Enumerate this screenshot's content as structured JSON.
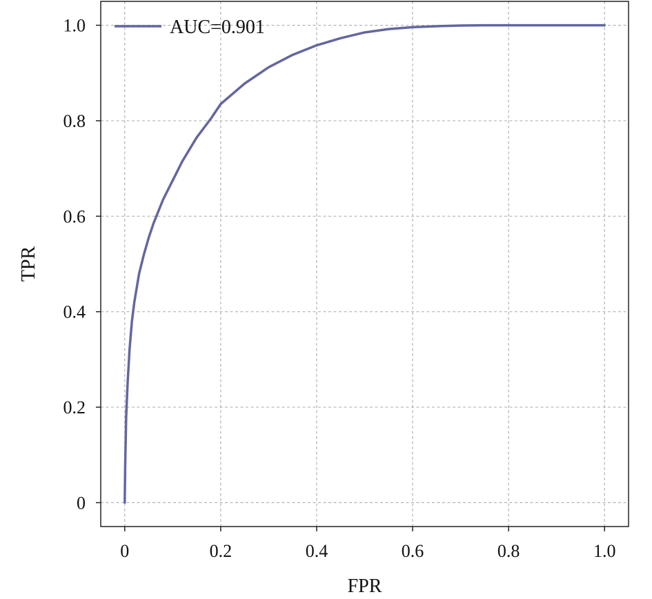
{
  "chart_data": {
    "type": "line",
    "title": "",
    "xlabel": "FPR",
    "ylabel": "TPR",
    "xlim": [
      -0.05,
      1.05
    ],
    "ylim": [
      -0.05,
      1.05
    ],
    "x_ticks": [
      0,
      0.2,
      0.4,
      0.6,
      0.8,
      1.0
    ],
    "x_tick_labels": [
      "0",
      "0.2",
      "0.4",
      "0.6",
      "0.8",
      "1.0"
    ],
    "y_ticks": [
      0,
      0.2,
      0.4,
      0.6,
      0.8,
      1.0
    ],
    "y_tick_labels": [
      "0",
      "0.2",
      "0.4",
      "0.6",
      "0.8",
      "1.0"
    ],
    "grid": true,
    "legend_position": "top-left",
    "series": [
      {
        "name": "AUC=0.901",
        "color": "#6366a0",
        "x": [
          0,
          0.001,
          0.003,
          0.006,
          0.01,
          0.015,
          0.02,
          0.03,
          0.04,
          0.05,
          0.06,
          0.07,
          0.08,
          0.1,
          0.12,
          0.15,
          0.18,
          0.2,
          0.25,
          0.3,
          0.35,
          0.4,
          0.45,
          0.5,
          0.55,
          0.6,
          0.65,
          0.7,
          0.75,
          0.8,
          0.85,
          0.9,
          0.95,
          1.0
        ],
        "y": [
          0,
          0.08,
          0.18,
          0.25,
          0.32,
          0.38,
          0.42,
          0.48,
          0.52,
          0.555,
          0.585,
          0.61,
          0.635,
          0.675,
          0.715,
          0.765,
          0.805,
          0.835,
          0.878,
          0.912,
          0.938,
          0.958,
          0.973,
          0.985,
          0.992,
          0.996,
          0.998,
          0.9995,
          1.0,
          1.0,
          1.0,
          1.0,
          1.0,
          1.0
        ]
      }
    ]
  }
}
